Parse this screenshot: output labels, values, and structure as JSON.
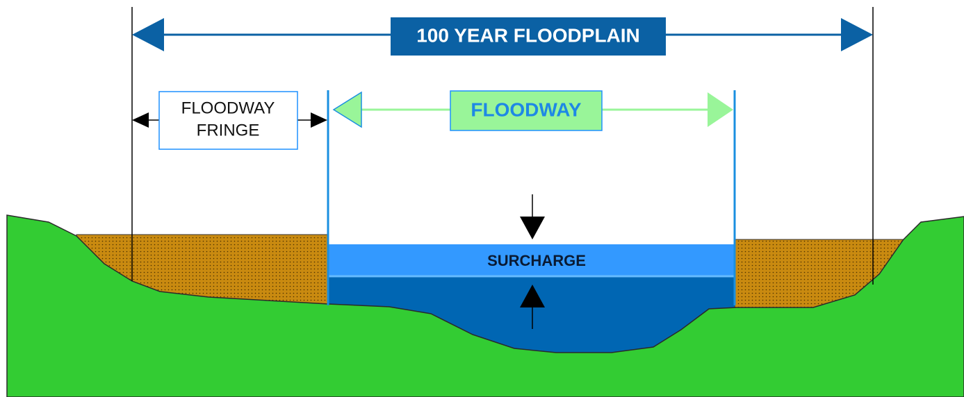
{
  "floodplain_label": "100 YEAR FLOODPLAIN",
  "floodway_label": "FLOODWAY",
  "fringe_label": [
    "FLOODWAY",
    "FRINGE"
  ],
  "surcharge_label": "SURCHARGE"
}
